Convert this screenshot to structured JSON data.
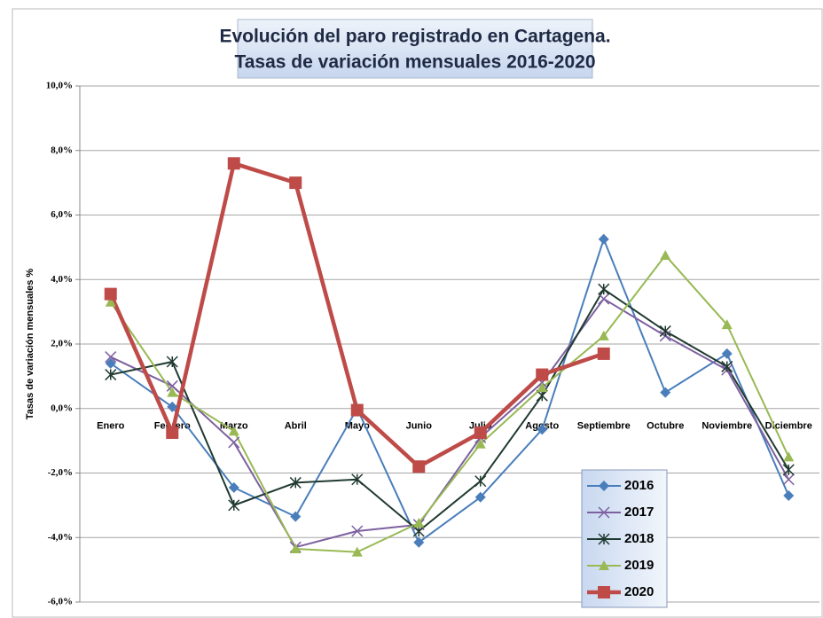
{
  "chart_data": {
    "type": "line",
    "title": "Evolución del paro registrado en Cartagena.",
    "subtitle": "Tasas de variación mensuales 2016-2020",
    "y_label": "Tasas de variación mensuales %",
    "categories": [
      "Enero",
      "Febrero",
      "Marzo",
      "Abril",
      "Mayo",
      "Junio",
      "Julio",
      "Agosto",
      "Septiembre",
      "Octubre",
      "Noviembre",
      "Diciembre"
    ],
    "series": [
      {
        "name": "2016",
        "color": "#4a7ebb",
        "marker": "diamond",
        "values": [
          1.4,
          0.05,
          -2.45,
          -3.35,
          0.0,
          -4.15,
          -2.75,
          -0.65,
          5.25,
          0.5,
          1.7,
          -2.7
        ]
      },
      {
        "name": "2017",
        "color": "#7d60a0",
        "marker": "x",
        "values": [
          1.6,
          0.7,
          -1.05,
          -4.3,
          -3.8,
          -3.6,
          -0.9,
          0.8,
          3.4,
          2.25,
          1.2,
          -2.2
        ]
      },
      {
        "name": "2018",
        "color": "#203a30",
        "marker": "star",
        "values": [
          1.05,
          1.45,
          -3.0,
          -2.3,
          -2.2,
          -3.8,
          -2.25,
          0.4,
          3.7,
          2.4,
          1.3,
          -1.9
        ]
      },
      {
        "name": "2019",
        "color": "#98b954",
        "marker": "triangle",
        "values": [
          3.3,
          0.5,
          -0.7,
          -4.35,
          -4.45,
          -3.55,
          -1.1,
          0.65,
          2.25,
          4.75,
          2.6,
          -1.5
        ]
      },
      {
        "name": "2020",
        "color": "#be4b48",
        "marker": "square",
        "values": [
          3.55,
          -0.75,
          7.6,
          7.0,
          -0.05,
          -1.8,
          -0.75,
          1.05,
          1.7,
          null,
          null,
          null
        ]
      }
    ],
    "ylim": [
      -6,
      10
    ],
    "yticks": [
      {
        "value": -6,
        "label": "-6,0%"
      },
      {
        "value": -4,
        "label": "-4,0%"
      },
      {
        "value": -2,
        "label": "-2,0%"
      },
      {
        "value": 0,
        "label": "0,0%"
      },
      {
        "value": 2,
        "label": "2,0%"
      },
      {
        "value": 4,
        "label": "4,0%"
      },
      {
        "value": 6,
        "label": "6,0%"
      },
      {
        "value": 8,
        "label": "8,0%"
      },
      {
        "value": 10,
        "label": "10,0%"
      }
    ],
    "grid": true
  }
}
